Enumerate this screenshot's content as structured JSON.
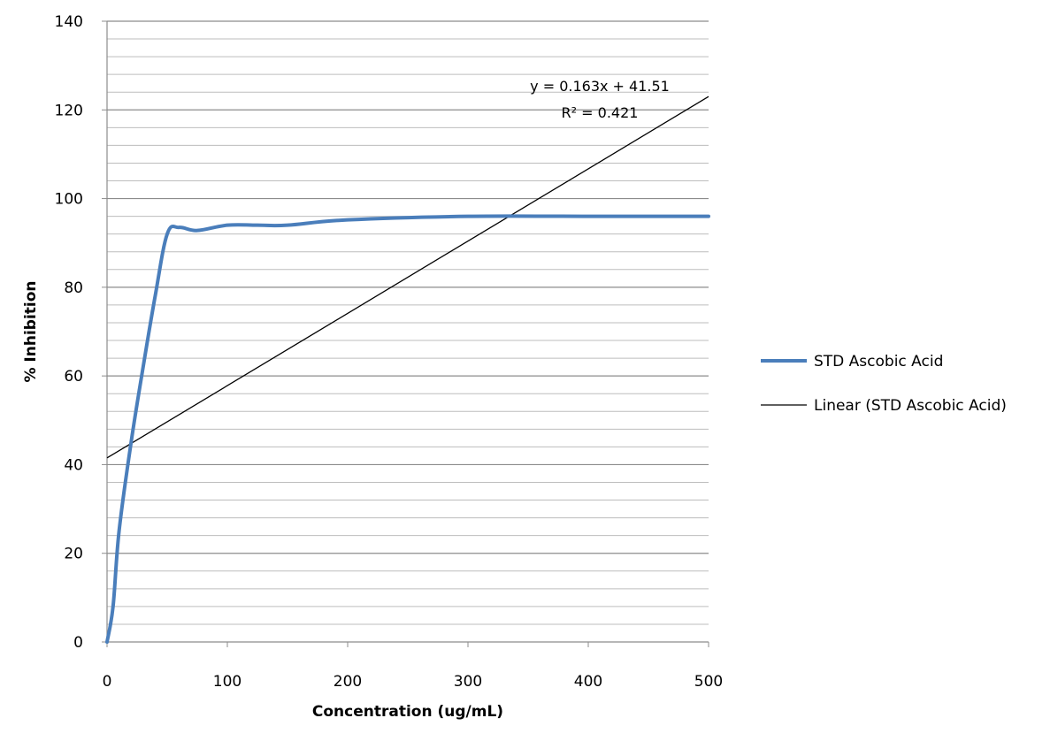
{
  "chart_data": {
    "type": "line",
    "xlabel": "Concentration (ug/mL)",
    "ylabel": "% Inhibition",
    "xlim": [
      0,
      500
    ],
    "ylim": [
      0,
      140
    ],
    "x_ticks": [
      "0",
      "100",
      "200",
      "300",
      "400",
      "500"
    ],
    "y_ticks": [
      "0",
      "20",
      "40",
      "60",
      "80",
      "100",
      "120",
      "140"
    ],
    "grid": true,
    "legend_position": "right",
    "series": [
      {
        "name": "STD Ascobic Acid",
        "color": "#4a7ebb",
        "x": [
          0,
          5,
          10,
          20,
          30,
          40,
          50,
          60,
          75,
          100,
          125,
          150,
          200,
          300,
          400,
          500
        ],
        "y": [
          0,
          8,
          25,
          45,
          62,
          78,
          92,
          93.5,
          92.8,
          94,
          94,
          94,
          95.2,
          96,
          96,
          96
        ]
      },
      {
        "name": "Linear (STD Ascobic Acid)",
        "color": "#000000",
        "trendline": {
          "slope": 0.163,
          "intercept": 41.51,
          "x_range": [
            0,
            500
          ]
        }
      }
    ],
    "annotations": {
      "equation": "y = 0.163x + 41.51",
      "r_squared": "R² = 0.421"
    }
  }
}
